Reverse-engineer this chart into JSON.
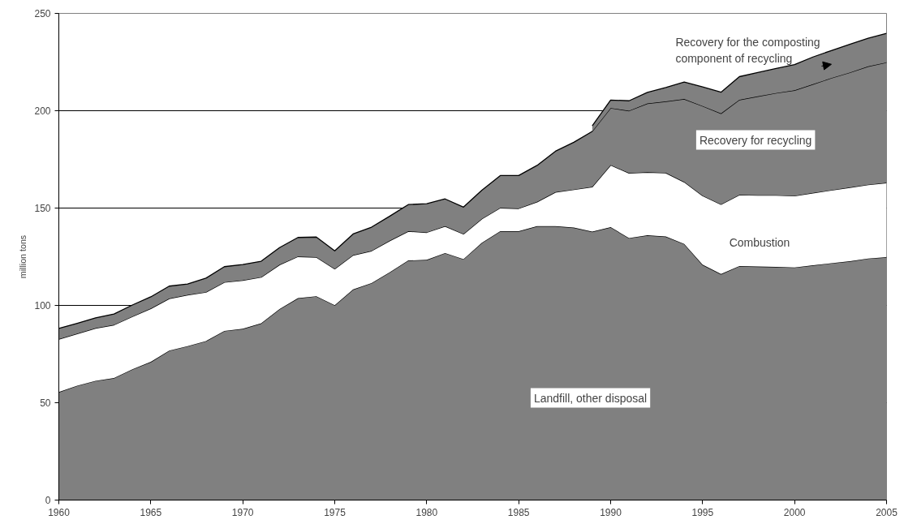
{
  "chart_data": {
    "type": "area",
    "stacked": true,
    "ylabel": "million tons",
    "x": [
      1960,
      1961,
      1962,
      1963,
      1964,
      1965,
      1966,
      1967,
      1968,
      1969,
      1970,
      1971,
      1972,
      1973,
      1974,
      1975,
      1976,
      1977,
      1978,
      1979,
      1980,
      1981,
      1982,
      1983,
      1984,
      1985,
      1986,
      1987,
      1988,
      1989,
      1990,
      1991,
      1992,
      1993,
      1994,
      1995,
      1996,
      1997,
      1998,
      1999,
      2000,
      2001,
      2002,
      2003,
      2004,
      2005
    ],
    "series": [
      {
        "name": "Landfill, other disposal",
        "color": "#808080",
        "values": [
          55.5,
          58.8,
          61.3,
          62.7,
          67.2,
          71.0,
          76.8,
          79.1,
          81.7,
          86.9,
          88.0,
          90.8,
          98.1,
          103.7,
          104.7,
          100.1,
          108.2,
          111.5,
          117.1,
          123.1,
          123.4,
          126.9,
          123.8,
          132.2,
          138.1,
          138.1,
          140.7,
          140.7,
          140.0,
          137.9,
          140.2,
          134.6,
          136.0,
          135.4,
          131.6,
          120.9,
          116.1,
          120.2,
          120.0,
          119.8,
          119.5,
          120.6,
          121.7,
          122.7,
          124.1,
          124.8
        ]
      },
      {
        "name": "Combustion",
        "color": "#ffffff",
        "values": [
          27.2,
          26.7,
          27.0,
          27.3,
          27.1,
          27.4,
          26.7,
          26.3,
          25.1,
          25.0,
          24.9,
          23.7,
          22.8,
          21.4,
          20.1,
          18.7,
          17.6,
          16.5,
          16.2,
          15.0,
          14.1,
          13.8,
          12.9,
          12.3,
          12.0,
          11.7,
          12.5,
          17.5,
          19.5,
          23.0,
          31.9,
          33.4,
          32.4,
          32.7,
          31.8,
          35.5,
          35.8,
          36.6,
          36.6,
          36.8,
          36.8,
          37.2,
          37.5,
          37.9,
          37.9,
          38.2
        ]
      },
      {
        "name": "Recovery for recycling",
        "color": "#808080",
        "values": [
          5.5,
          5.3,
          5.3,
          5.6,
          5.9,
          6.0,
          6.4,
          5.6,
          7.2,
          8.0,
          8.1,
          8.2,
          8.8,
          9.8,
          10.3,
          9.2,
          10.9,
          12.2,
          12.6,
          13.7,
          14.7,
          14.0,
          13.8,
          14.7,
          16.6,
          16.9,
          18.7,
          21.0,
          24.3,
          28.5,
          29.3,
          32.0,
          35.3,
          36.7,
          42.6,
          46.0,
          46.7,
          48.8,
          50.8,
          52.5,
          54.2,
          55.8,
          57.6,
          59.0,
          60.8,
          61.8
        ]
      },
      {
        "name": "Recovery for the composting component of recycling",
        "color": "#808080",
        "values": [
          null,
          null,
          null,
          null,
          null,
          null,
          null,
          null,
          null,
          null,
          null,
          null,
          null,
          null,
          null,
          null,
          null,
          null,
          null,
          null,
          null,
          null,
          null,
          null,
          null,
          null,
          null,
          null,
          null,
          2.8,
          4.1,
          5.1,
          5.7,
          7.1,
          8.7,
          9.8,
          10.9,
          11.9,
          12.2,
          12.6,
          13.2,
          14.0,
          14.1,
          14.5,
          14.4,
          14.9
        ]
      }
    ],
    "xlim": [
      1960,
      2005
    ],
    "xticks": [
      1960,
      1965,
      1970,
      1975,
      1980,
      1985,
      1990,
      1995,
      2000,
      2005
    ],
    "ylim": [
      0,
      250
    ],
    "yticks": [
      0,
      50,
      100,
      150,
      200,
      250
    ],
    "grid": "y",
    "legend": false
  }
}
